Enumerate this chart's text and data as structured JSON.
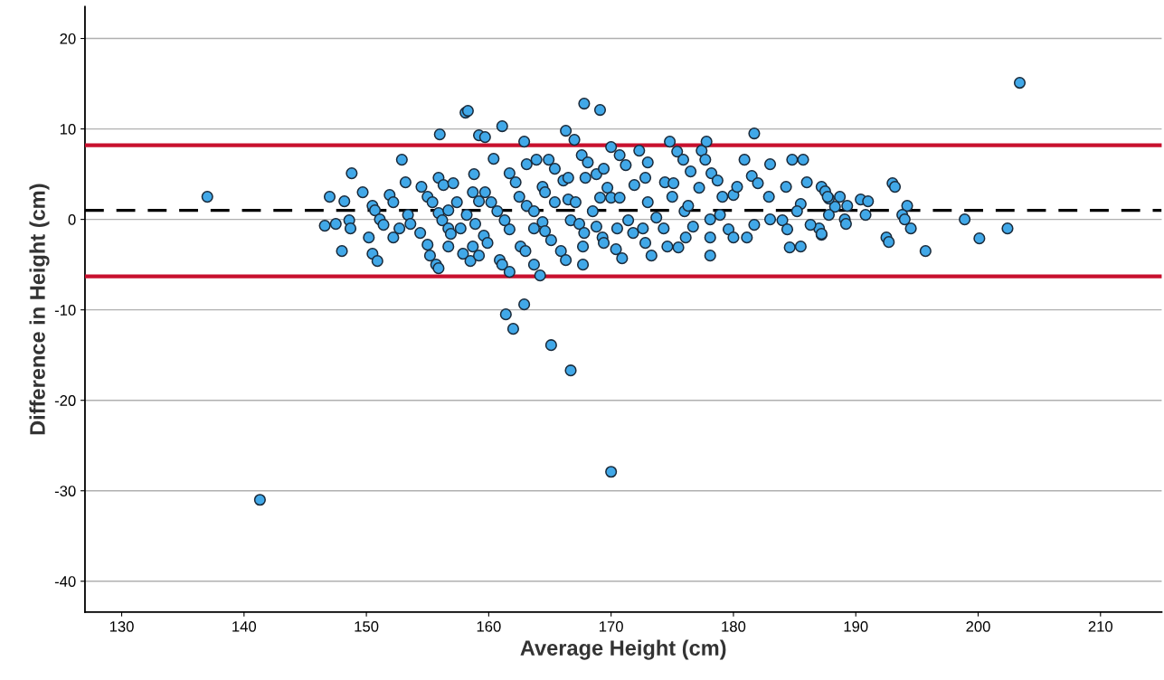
{
  "chart_data": {
    "type": "scatter",
    "xlabel": "Average Height (cm)",
    "ylabel": "Difference in Height (cm)",
    "xlim": [
      127,
      215
    ],
    "ylim": [
      -43.4,
      23.5
    ],
    "xticks": [
      130,
      140,
      150,
      160,
      170,
      180,
      190,
      200,
      210
    ],
    "yticks": [
      -40,
      -30,
      -20,
      -10,
      0,
      10,
      20
    ],
    "grid": "y",
    "marker": "circle",
    "legend": false,
    "ref_lines": [
      {
        "axis": "y",
        "value": 8.2,
        "color": "#c8102e",
        "line_style": "solid"
      },
      {
        "axis": "y",
        "value": 1.0,
        "color": "#000000",
        "line_style": "dashed"
      },
      {
        "axis": "y",
        "value": -6.3,
        "color": "#c8102e",
        "line_style": "solid"
      }
    ],
    "series": [
      {
        "color": "#41a8e8",
        "x": [
          137.0,
          141.3,
          203.4,
          170.0,
          166.7,
          165.1,
          161.4,
          162.0,
          162.9,
          195.7,
          198.9,
          200.1,
          202.4,
          193.0,
          193.2,
          194.2,
          193.8,
          194.0,
          194.5,
          192.5,
          192.7,
          190.4,
          191.0,
          190.8,
          188.7,
          189.3,
          188.3,
          187.8,
          189.1,
          189.2,
          187.2,
          187.5,
          187.8,
          187.0,
          187.2,
          147.0,
          148.2,
          148.8,
          149.7,
          146.6,
          147.5,
          148.6,
          148.7,
          148.0,
          150.2,
          150.5,
          150.9,
          150.5,
          150.7,
          151.1,
          151.4,
          152.2,
          151.9,
          152.2,
          152.9,
          153.2,
          152.7,
          153.4,
          153.6,
          154.4,
          154.5,
          155.0,
          155.4,
          155.0,
          155.2,
          155.7,
          155.9,
          156.0,
          155.9,
          156.3,
          157.1,
          155.9,
          156.2,
          156.7,
          156.9,
          156.7,
          156.7,
          157.4,
          158.1,
          158.3,
          159.2,
          159.7,
          161.1,
          160.4,
          158.8,
          158.7,
          159.7,
          159.2,
          160.2,
          160.7,
          157.7,
          158.2,
          158.9,
          159.6,
          159.9,
          158.7,
          157.9,
          158.5,
          159.2,
          161.7,
          162.2,
          162.5,
          163.1,
          161.7,
          161.3,
          160.9,
          161.1,
          161.7,
          162.6,
          163.0,
          163.7,
          164.2,
          162.9,
          163.1,
          163.9,
          164.9,
          165.4,
          164.4,
          164.6,
          163.7,
          163.7,
          164.4,
          164.6,
          165.1,
          165.9,
          166.3,
          166.3,
          167.0,
          167.8,
          169.1,
          167.6,
          168.1,
          167.9,
          166.1,
          166.5,
          165.4,
          166.5,
          167.1,
          166.7,
          167.4,
          167.8,
          167.7,
          167.7,
          168.8,
          169.4,
          169.7,
          170.0,
          170.7,
          171.2,
          169.1,
          168.5,
          168.8,
          169.3,
          169.4,
          170.4,
          170.9,
          170.0,
          170.7,
          170.5,
          171.4,
          171.8,
          172.3,
          173.0,
          171.9,
          172.8,
          173.0,
          172.6,
          172.8,
          173.3,
          173.7,
          174.3,
          174.6,
          175.5,
          174.4,
          175.1,
          174.8,
          175.4,
          175.9,
          176.5,
          175.0,
          176.0,
          176.3,
          176.1,
          176.7,
          177.4,
          177.8,
          177.7,
          177.2,
          178.2,
          178.1,
          178.1,
          178.1,
          178.7,
          179.1,
          178.9,
          179.6,
          180.0,
          180.0,
          180.3,
          180.9,
          181.5,
          182.0,
          181.7,
          183.0,
          182.9,
          181.1,
          181.7,
          183.0,
          184.0,
          184.4,
          184.6,
          185.5,
          184.8,
          185.7,
          184.3,
          186.0,
          185.5,
          185.2,
          186.3,
          187.2,
          187.7
        ],
        "values": [
          2.5,
          -31.0,
          15.1,
          -27.9,
          -16.7,
          -13.9,
          -10.5,
          -12.1,
          -9.4,
          -3.5,
          0.0,
          -2.1,
          -1.0,
          4.0,
          3.6,
          1.5,
          0.5,
          0.0,
          -1.0,
          -2.0,
          -2.5,
          2.2,
          2.0,
          0.5,
          2.5,
          1.5,
          1.4,
          0.5,
          0.0,
          -0.5,
          3.6,
          3.1,
          2.3,
          -1.0,
          -1.7,
          2.5,
          2.0,
          5.1,
          3.0,
          -0.7,
          -0.5,
          -0.1,
          -1.0,
          -3.5,
          -2.0,
          -3.8,
          -4.6,
          1.5,
          1.0,
          0.0,
          -0.6,
          -2.0,
          2.7,
          1.9,
          6.6,
          4.1,
          -1.0,
          0.5,
          -0.5,
          -1.5,
          3.6,
          2.5,
          1.9,
          -2.8,
          -4.0,
          -5.0,
          -5.4,
          9.4,
          4.6,
          3.8,
          4.0,
          0.7,
          -0.1,
          -1.0,
          -1.6,
          -3.0,
          1.0,
          1.9,
          11.8,
          12.0,
          9.3,
          9.1,
          10.3,
          6.7,
          5.0,
          3.0,
          3.0,
          2.0,
          1.9,
          0.9,
          -1.0,
          0.5,
          -0.5,
          -1.8,
          -2.6,
          -3.0,
          -3.8,
          -4.6,
          -4.0,
          5.1,
          4.1,
          2.5,
          1.5,
          -1.1,
          -0.1,
          -4.5,
          -5.0,
          -5.8,
          -3.0,
          -3.5,
          -5.0,
          -6.2,
          8.6,
          6.1,
          6.6,
          6.6,
          5.6,
          3.6,
          3.0,
          0.9,
          -1.0,
          -0.3,
          -1.3,
          -2.3,
          -3.5,
          -4.5,
          9.8,
          8.8,
          12.8,
          12.1,
          7.1,
          6.3,
          4.6,
          4.3,
          4.6,
          1.9,
          2.2,
          1.9,
          -0.1,
          -0.5,
          -1.5,
          -3.0,
          -5.0,
          5.0,
          5.6,
          3.5,
          8.0,
          7.1,
          6.0,
          2.4,
          0.9,
          -0.8,
          -2.0,
          -2.6,
          -3.3,
          -4.3,
          2.4,
          2.4,
          -1.0,
          -0.1,
          -1.5,
          7.6,
          6.3,
          3.8,
          4.6,
          1.9,
          -1.0,
          -2.6,
          -4.0,
          0.2,
          -1.0,
          -3.0,
          -3.1,
          4.1,
          4.0,
          8.6,
          7.5,
          6.6,
          5.3,
          2.5,
          0.9,
          1.5,
          -2.0,
          -0.8,
          7.6,
          8.6,
          6.6,
          3.5,
          5.1,
          0.0,
          -2.0,
          -4.0,
          4.3,
          2.5,
          0.5,
          -1.1,
          -2.0,
          2.7,
          3.6,
          6.6,
          4.8,
          4.0,
          9.5,
          6.1,
          2.5,
          -2.0,
          -0.6,
          0.0,
          -0.1,
          -1.1,
          -3.1,
          -3.0,
          6.6,
          6.6,
          3.6,
          4.1,
          1.7,
          0.9,
          -0.6,
          -1.6,
          2.5
        ]
      }
    ]
  }
}
